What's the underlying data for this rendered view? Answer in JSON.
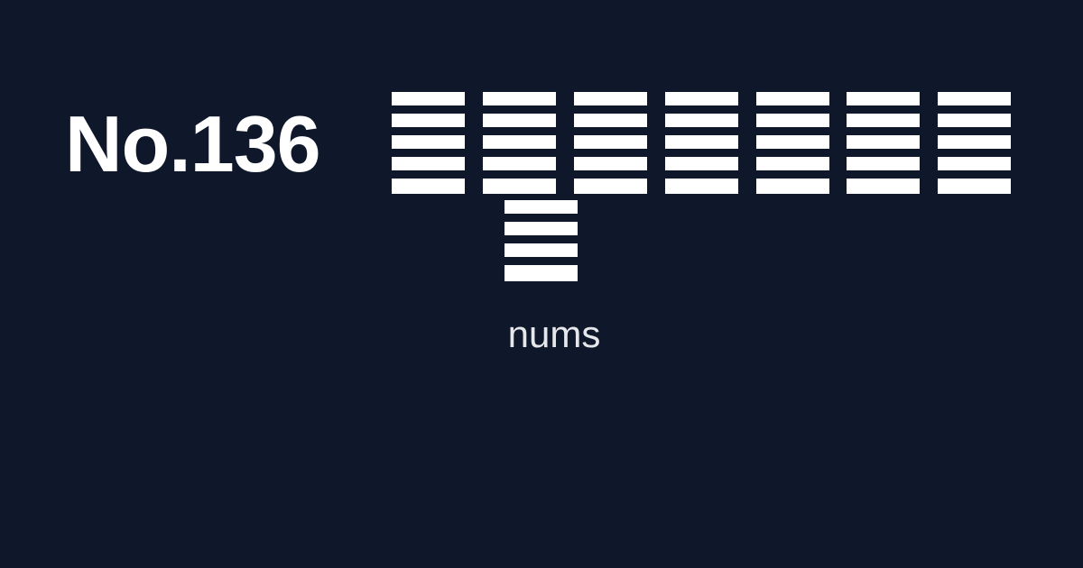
{
  "title": "No.136",
  "caption": "nums",
  "colors": {
    "background": "#0f172a",
    "title": "#ffffff",
    "tile": "#ffffff",
    "caption": "#e5e7eb"
  }
}
